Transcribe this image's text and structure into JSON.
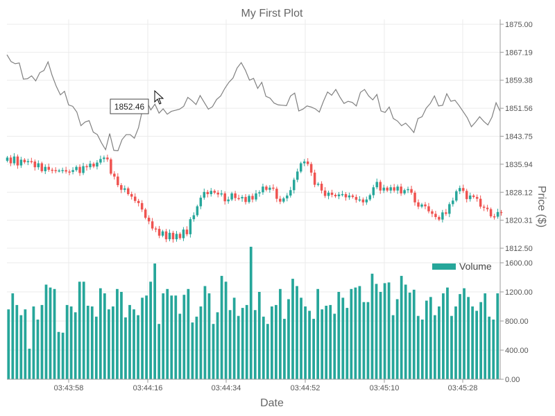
{
  "chart_data": {
    "type": "candlestick",
    "title": "My First Plot",
    "xlabel": "Date",
    "ylabel": "Price ($)",
    "x_ticks": [
      "03:43:58",
      "03:44:16",
      "03:44:34",
      "03:44:52",
      "03:45:10",
      "03:45:28"
    ],
    "price_axis": {
      "ticks": [
        "1875.00",
        "1867.19",
        "1859.38",
        "1851.56",
        "1843.75",
        "1835.94",
        "1828.12",
        "1820.31",
        "1812.50"
      ],
      "range": [
        1812.5,
        1875.0
      ]
    },
    "volume_axis": {
      "ticks": [
        "1600.00",
        "1200.00",
        "800.00",
        "400.00",
        "0.00"
      ],
      "range": [
        0,
        1800
      ]
    },
    "legend": [
      {
        "name": "Volume",
        "color": "#26a69a"
      }
    ],
    "tooltip": {
      "value": "1852.46"
    },
    "colors": {
      "up": "#26a69a",
      "down": "#ef5350",
      "line": "#808080",
      "volume": "#26a69a"
    },
    "line_series": [
      1866.5,
      1864.6,
      1864.0,
      1864.2,
      1859.7,
      1859.8,
      1860.6,
      1859.2,
      1861.5,
      1862.1,
      1864.5,
      1860.7,
      1857.7,
      1855.3,
      1856.3,
      1852.5,
      1852.1,
      1850.5,
      1846.7,
      1847.7,
      1848.1,
      1844.9,
      1844.2,
      1841.9,
      1840.0,
      1844.5,
      1839.8,
      1839.7,
      1842.8,
      1844.2,
      1844.2,
      1843.2,
      1846.1,
      1851.3,
      1853.5,
      1851.1,
      1852.7,
      1850.2,
      1851.4,
      1849.9,
      1850.7,
      1851.0,
      1851.3,
      1852.1,
      1854.6,
      1853.7,
      1852.6,
      1855.1,
      1853.2,
      1851.3,
      1852.0,
      1854.0,
      1855.0,
      1857.1,
      1858.8,
      1860.0,
      1862.8,
      1864.3,
      1862.2,
      1859.4,
      1859.9,
      1857.1,
      1858.8,
      1854.9,
      1854.4,
      1853.0,
      1852.5,
      1852.4,
      1852.3,
      1855.0,
      1855.8,
      1850.8,
      1851.3,
      1852.2,
      1851.9,
      1851.4,
      1850.5,
      1853.5,
      1856.1,
      1855.2,
      1856.8,
      1854.7,
      1852.9,
      1853.5,
      1853.2,
      1852.2,
      1856.0,
      1856.8,
      1855.0,
      1853.9,
      1855.4,
      1850.8,
      1850.4,
      1851.9,
      1848.7,
      1848.0,
      1846.7,
      1847.4,
      1846.2,
      1844.8,
      1848.7,
      1849.2,
      1851.6,
      1852.9,
      1855.0,
      1852.2,
      1852.4,
      1855.6,
      1853.5,
      1853.8,
      1852.3,
      1850.6,
      1848.9,
      1846.4,
      1847.7,
      1849.2,
      1847.9,
      1846.9,
      1849.1,
      1853.1,
      1850.7
    ],
    "candles": [
      [
        1836.9,
        1837.8,
        1836.2,
        1838.1,
        1835.6
      ],
      [
        1837.2,
        1836.5,
        1836.8,
        1836.7,
        1835.1
      ],
      [
        1836.2,
        1834.0,
        1835.2,
        1834.4,
        1834.3
      ],
      [
        1834.1,
        1834.2,
        1834.3,
        1833.9,
        1833.8
      ],
      [
        1834.3,
        1835.2,
        1833.5,
        1835.4,
        1835.1
      ],
      [
        1836.1,
        1835.3,
        1836.4,
        1837.4,
        1837.8
      ],
      [
        1837.3,
        1833.3,
        1832.5,
        1830.1,
        1828.8
      ],
      [
        1829.2,
        1827.6,
        1826.9,
        1825.7,
        1825.1
      ],
      [
        1823.3,
        1821.0,
        1820.0,
        1818.0,
        1817.9
      ],
      [
        1816.0,
        1817.2,
        1815.0,
        1816.8,
        1815.0
      ],
      [
        1816.5,
        1815.3,
        1817.7,
        1816.4,
        1820.6
      ],
      [
        1821.7,
        1824.2,
        1826.6,
        1828.2,
        1827.6
      ],
      [
        1828.5,
        1828.0,
        1827.5,
        1827.8,
        1825.6
      ],
      [
        1826.1,
        1827.8,
        1826.5,
        1826.4,
        1826.8
      ],
      [
        1825.4,
        1827.1,
        1826.1,
        1827.8,
        1828.1
      ],
      [
        1829.7,
        1828.8,
        1829.4,
        1829.1,
        1826.3
      ],
      [
        1825.5,
        1826.4,
        1827.2,
        1828.7,
        1831.6
      ],
      [
        1833.9,
        1836.2,
        1836.7,
        1836.0,
        1833.6
      ],
      [
        1830.2,
        1830.5,
        1828.6,
        1827.1,
        1828.0
      ],
      [
        1827.4,
        1827.0,
        1827.5,
        1827.6,
        1826.7
      ],
      [
        1827.2,
        1826.8,
        1826.0,
        1826.1,
        1825.3
      ],
      [
        1826.1,
        1827.3,
        1829.5,
        1831.0,
        1828.6
      ],
      [
        1829.4,
        1828.6,
        1829.5,
        1828.6,
        1829.7
      ],
      [
        1827.8,
        1828.7,
        1829.0,
        1828.0,
        1825.3
      ],
      [
        1824.1,
        1824.7,
        1824.2,
        1822.8,
        1822.1
      ],
      [
        1821.2,
        1820.5,
        1822.5,
        1822.1,
        1824.8
      ],
      [
        1825.8,
        1828.4,
        1829.3,
        1828.5,
        1826.2
      ],
      [
        1827.2,
        1826.8,
        1826.3,
        1824.1,
        1823.8
      ],
      [
        1823.4,
        1821.4,
        1821.3,
        1822.6,
        1822.5
      ]
    ],
    "volume_series": [
      960,
      1180,
      1020,
      880,
      960,
      420,
      1000,
      820,
      1020,
      1300,
      1260,
      1240,
      650,
      640,
      1020,
      1000,
      920,
      1340,
      1340,
      1010,
      1000,
      860,
      1250,
      1180,
      960,
      1000,
      1240,
      1200,
      850,
      1020,
      960,
      880,
      1120,
      1150,
      1340,
      1590,
      760,
      1180,
      1240,
      1150,
      1150,
      900,
      1160,
      1240,
      780,
      860,
      1000,
      1280,
      1180,
      760,
      920,
      1420,
      1340,
      950,
      1120,
      870,
      980,
      1020,
      1820,
      950,
      1200,
      860,
      760,
      1000,
      1020,
      1240,
      830,
      1100,
      1380,
      1280,
      1120,
      1000,
      940,
      830,
      1240,
      960,
      1010,
      1020,
      900,
      1200,
      1120,
      980,
      1240,
      1260,
      1280,
      1060,
      1060,
      1450,
      1310,
      1200,
      1320,
      1330,
      880,
      1100,
      1420,
      1300,
      1190,
      1230,
      870,
      820,
      1080,
      1130,
      880,
      1000,
      1180,
      1260,
      870,
      1000,
      1170,
      1250,
      1130,
      1000,
      940,
      1060,
      1180,
      860,
      820,
      1180
    ]
  }
}
